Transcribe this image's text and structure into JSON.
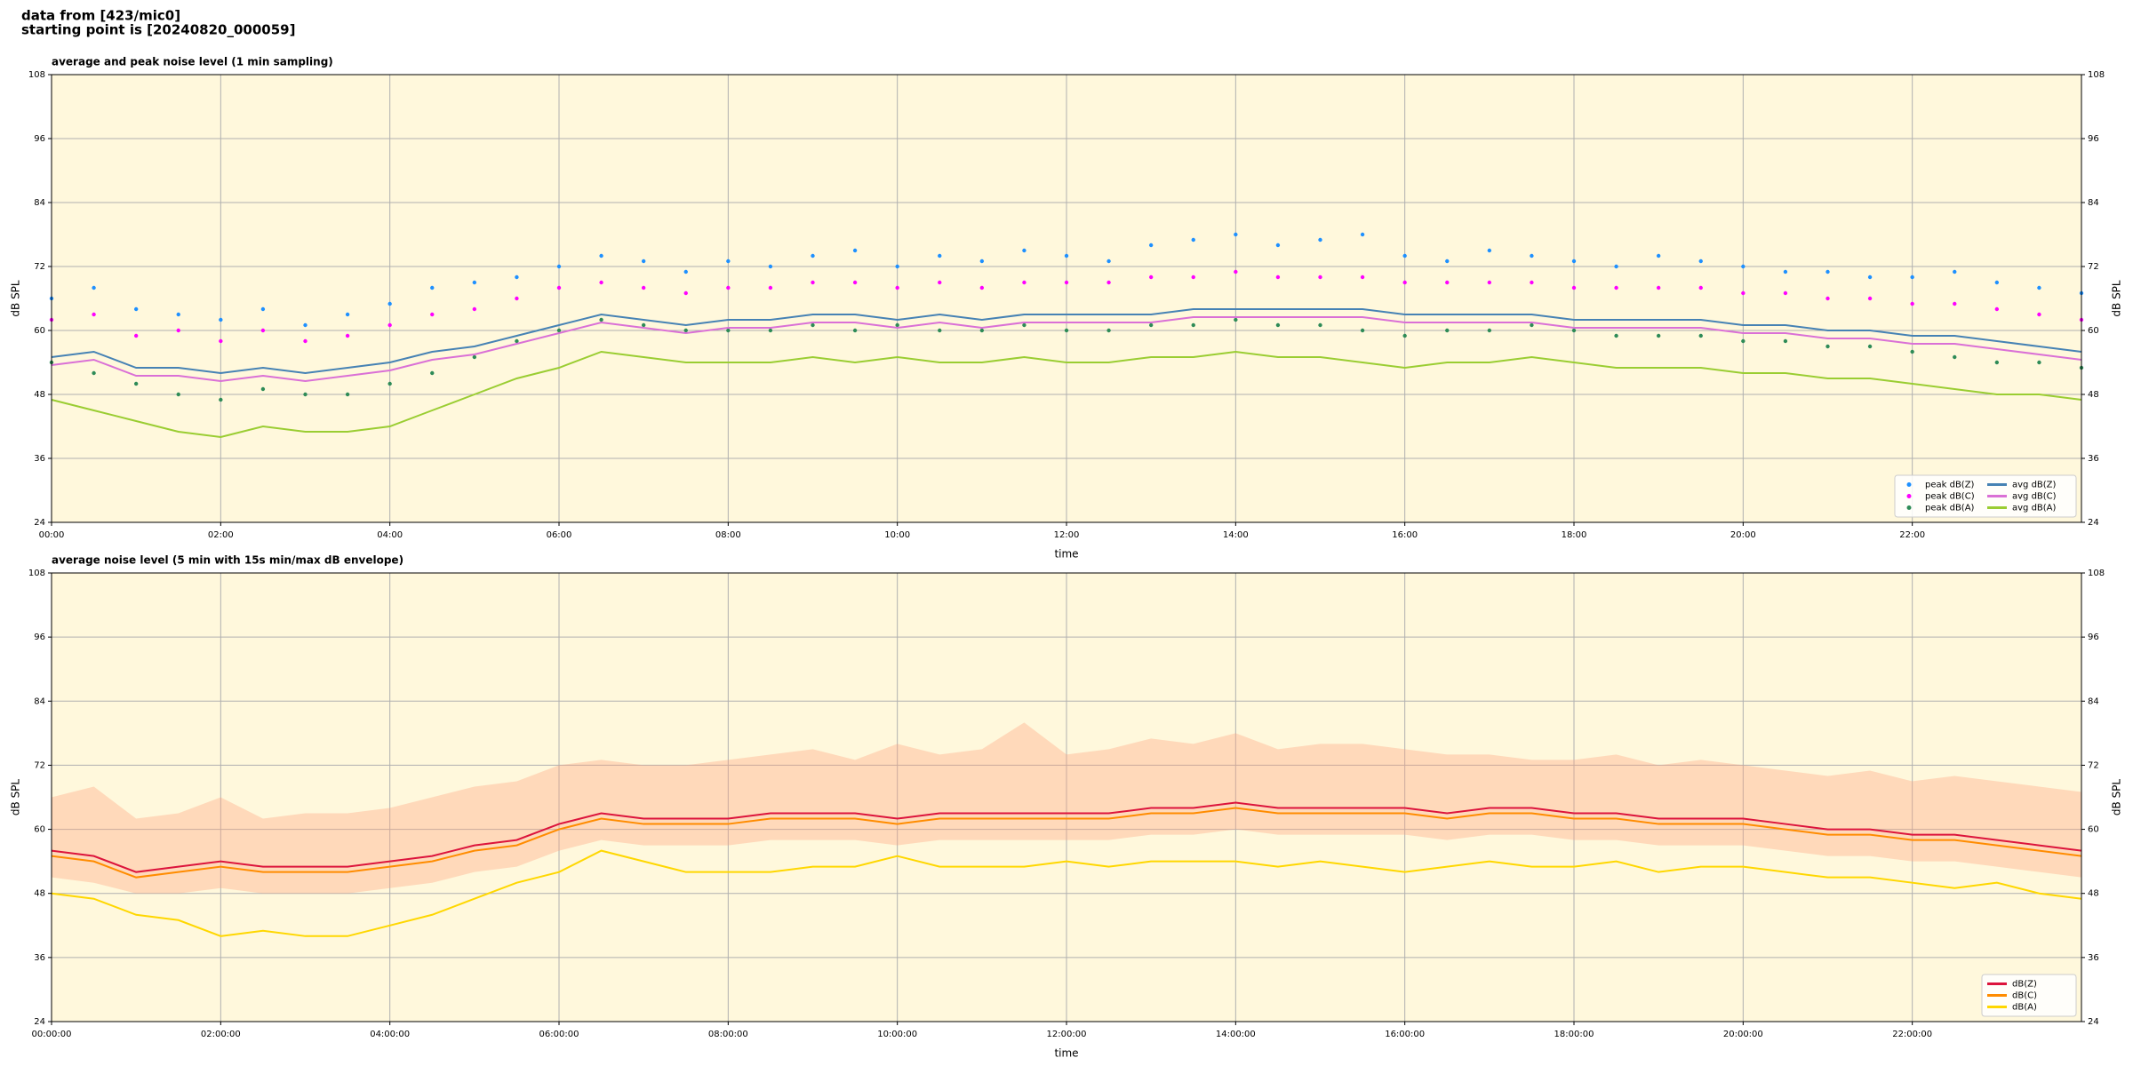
{
  "suptitle": [
    "data from [423/mic0]",
    "starting point is [20240820_000059]"
  ],
  "chart_data": [
    {
      "type": "line",
      "title": "average and peak noise level (1 min sampling)",
      "xlabel": "time",
      "ylabel": "dB SPL",
      "background": "#fff8dc",
      "grid": true,
      "legend": "lower right",
      "legend_columns": 2,
      "xlim": [
        0,
        24
      ],
      "ylim": [
        24,
        108
      ],
      "yticks": [
        24,
        36,
        48,
        60,
        72,
        84,
        96,
        108
      ],
      "xticks": [
        {
          "value": 0,
          "label": "00:00"
        },
        {
          "value": 2,
          "label": "02:00"
        },
        {
          "value": 4,
          "label": "04:00"
        },
        {
          "value": 6,
          "label": "06:00"
        },
        {
          "value": 8,
          "label": "08:00"
        },
        {
          "value": 10,
          "label": "10:00"
        },
        {
          "value": 12,
          "label": "12:00"
        },
        {
          "value": 14,
          "label": "14:00"
        },
        {
          "value": 16,
          "label": "16:00"
        },
        {
          "value": 18,
          "label": "18:00"
        },
        {
          "value": 20,
          "label": "20:00"
        },
        {
          "value": 22,
          "label": "22:00"
        }
      ],
      "x": [
        0,
        0.5,
        1,
        1.5,
        2,
        2.5,
        3,
        3.5,
        4,
        4.5,
        5,
        5.5,
        6,
        6.5,
        7,
        7.5,
        8,
        8.5,
        9,
        9.5,
        10,
        10.5,
        11,
        11.5,
        12,
        12.5,
        13,
        13.5,
        14,
        14.5,
        15,
        15.5,
        16,
        16.5,
        17,
        17.5,
        18,
        18.5,
        19,
        19.5,
        20,
        20.5,
        21,
        21.5,
        22,
        22.5,
        23,
        23.5,
        24
      ],
      "series": [
        {
          "name": "peak dB(Z)",
          "style": "dots",
          "color": "#1e90ff",
          "values": [
            66,
            68,
            64,
            63,
            62,
            64,
            61,
            63,
            65,
            68,
            69,
            70,
            72,
            74,
            73,
            71,
            73,
            72,
            74,
            75,
            72,
            74,
            73,
            75,
            74,
            73,
            76,
            77,
            78,
            76,
            77,
            78,
            74,
            73,
            75,
            74,
            73,
            72,
            74,
            73,
            72,
            71,
            71,
            70,
            70,
            71,
            69,
            68,
            67
          ]
        },
        {
          "name": "peak dB(C)",
          "style": "dots",
          "color": "#ff00ff",
          "values": [
            62,
            63,
            59,
            60,
            58,
            60,
            58,
            59,
            61,
            63,
            64,
            66,
            68,
            69,
            68,
            67,
            68,
            68,
            69,
            69,
            68,
            69,
            68,
            69,
            69,
            69,
            70,
            70,
            71,
            70,
            70,
            70,
            69,
            69,
            69,
            69,
            68,
            68,
            68,
            68,
            67,
            67,
            66,
            66,
            65,
            65,
            64,
            63,
            62
          ]
        },
        {
          "name": "peak dB(A)",
          "style": "dots",
          "color": "#2e8b57",
          "values": [
            54,
            52,
            50,
            48,
            47,
            49,
            48,
            48,
            50,
            52,
            55,
            58,
            60,
            62,
            61,
            60,
            60,
            60,
            61,
            60,
            61,
            60,
            60,
            61,
            60,
            60,
            61,
            61,
            62,
            61,
            61,
            60,
            59,
            60,
            60,
            61,
            60,
            59,
            59,
            59,
            58,
            58,
            57,
            57,
            56,
            55,
            54,
            54,
            53
          ]
        },
        {
          "name": "avg dB(Z)",
          "style": "line",
          "color": "#4682b4",
          "values": [
            55,
            56,
            53,
            53,
            52,
            53,
            52,
            53,
            54,
            56,
            57,
            59,
            61,
            63,
            62,
            61,
            62,
            62,
            63,
            63,
            62,
            63,
            62,
            63,
            63,
            63,
            63,
            64,
            64,
            64,
            64,
            64,
            63,
            63,
            63,
            63,
            62,
            62,
            62,
            62,
            61,
            61,
            60,
            60,
            59,
            59,
            58,
            57,
            56
          ]
        },
        {
          "name": "avg dB(C)",
          "style": "line",
          "color": "#da70d6",
          "values": [
            53.5,
            54.5,
            51.5,
            51.5,
            50.5,
            51.5,
            50.5,
            51.5,
            52.5,
            54.5,
            55.5,
            57.5,
            59.5,
            61.5,
            60.5,
            59.5,
            60.5,
            60.5,
            61.5,
            61.5,
            60.5,
            61.5,
            60.5,
            61.5,
            61.5,
            61.5,
            61.5,
            62.5,
            62.5,
            62.5,
            62.5,
            62.5,
            61.5,
            61.5,
            61.5,
            61.5,
            60.5,
            60.5,
            60.5,
            60.5,
            59.5,
            59.5,
            58.5,
            58.5,
            57.5,
            57.5,
            56.5,
            55.5,
            54.5
          ]
        },
        {
          "name": "avg dB(A)",
          "style": "line",
          "color": "#9acd32",
          "values": [
            47,
            45,
            43,
            41,
            40,
            42,
            41,
            41,
            42,
            45,
            48,
            51,
            53,
            56,
            55,
            54,
            54,
            54,
            55,
            54,
            55,
            54,
            54,
            55,
            54,
            54,
            55,
            55,
            56,
            55,
            55,
            54,
            53,
            54,
            54,
            55,
            54,
            53,
            53,
            53,
            52,
            52,
            51,
            51,
            50,
            49,
            48,
            48,
            47
          ]
        }
      ]
    },
    {
      "type": "line",
      "title": "average noise level (5 min with 15s min/max dB envelope)",
      "xlabel": "time",
      "ylabel": "dB SPL",
      "background": "#fff8dc",
      "grid": true,
      "legend": "lower right",
      "legend_columns": 1,
      "xlim": [
        0,
        24
      ],
      "ylim": [
        24,
        108
      ],
      "yticks": [
        24,
        36,
        48,
        60,
        72,
        84,
        96,
        108
      ],
      "xticks": [
        {
          "value": 0,
          "label": "00:00:00"
        },
        {
          "value": 2,
          "label": "02:00:00"
        },
        {
          "value": 4,
          "label": "04:00:00"
        },
        {
          "value": 6,
          "label": "06:00:00"
        },
        {
          "value": 8,
          "label": "08:00:00"
        },
        {
          "value": 10,
          "label": "10:00:00"
        },
        {
          "value": 12,
          "label": "12:00:00"
        },
        {
          "value": 14,
          "label": "14:00:00"
        },
        {
          "value": 16,
          "label": "16:00:00"
        },
        {
          "value": 18,
          "label": "18:00:00"
        },
        {
          "value": 20,
          "label": "20:00:00"
        },
        {
          "value": 22,
          "label": "22:00:00"
        }
      ],
      "x": [
        0,
        0.5,
        1,
        1.5,
        2,
        2.5,
        3,
        3.5,
        4,
        4.5,
        5,
        5.5,
        6,
        6.5,
        7,
        7.5,
        8,
        8.5,
        9,
        9.5,
        10,
        10.5,
        11,
        11.5,
        12,
        12.5,
        13,
        13.5,
        14,
        14.5,
        15,
        15.5,
        16,
        16.5,
        17,
        17.5,
        18,
        18.5,
        19,
        19.5,
        20,
        20.5,
        21,
        21.5,
        22,
        22.5,
        23,
        23.5,
        24
      ],
      "band": {
        "color": "#ffa07a",
        "low": [
          51,
          50,
          48,
          48,
          49,
          48,
          48,
          48,
          49,
          50,
          52,
          53,
          56,
          58,
          57,
          57,
          57,
          58,
          58,
          58,
          57,
          58,
          58,
          58,
          58,
          58,
          59,
          59,
          60,
          59,
          59,
          59,
          59,
          58,
          59,
          59,
          58,
          58,
          57,
          57,
          57,
          56,
          55,
          55,
          54,
          54,
          53,
          52,
          51
        ],
        "high": [
          66,
          68,
          62,
          63,
          66,
          62,
          63,
          63,
          64,
          66,
          68,
          69,
          72,
          73,
          72,
          72,
          73,
          74,
          75,
          73,
          76,
          74,
          75,
          80,
          74,
          75,
          77,
          76,
          78,
          75,
          76,
          76,
          75,
          74,
          74,
          73,
          73,
          74,
          72,
          73,
          72,
          71,
          70,
          71,
          69,
          70,
          69,
          68,
          67
        ]
      },
      "series": [
        {
          "name": "dB(Z)",
          "style": "line",
          "color": "#dc143c",
          "values": [
            56,
            55,
            52,
            53,
            54,
            53,
            53,
            53,
            54,
            55,
            57,
            58,
            61,
            63,
            62,
            62,
            62,
            63,
            63,
            63,
            62,
            63,
            63,
            63,
            63,
            63,
            64,
            64,
            65,
            64,
            64,
            64,
            64,
            63,
            64,
            64,
            63,
            63,
            62,
            62,
            62,
            61,
            60,
            60,
            59,
            59,
            58,
            57,
            56
          ]
        },
        {
          "name": "dB(C)",
          "style": "line",
          "color": "#ff8c00",
          "values": [
            55,
            54,
            51,
            52,
            53,
            52,
            52,
            52,
            53,
            54,
            56,
            57,
            60,
            62,
            61,
            61,
            61,
            62,
            62,
            62,
            61,
            62,
            62,
            62,
            62,
            62,
            63,
            63,
            64,
            63,
            63,
            63,
            63,
            62,
            63,
            63,
            62,
            62,
            61,
            61,
            61,
            60,
            59,
            59,
            58,
            58,
            57,
            56,
            55
          ]
        },
        {
          "name": "dB(A)",
          "style": "line",
          "color": "#ffd700",
          "values": [
            48,
            47,
            44,
            43,
            40,
            41,
            40,
            40,
            42,
            44,
            47,
            50,
            52,
            56,
            54,
            52,
            52,
            52,
            53,
            53,
            55,
            53,
            53,
            53,
            54,
            53,
            54,
            54,
            54,
            53,
            54,
            53,
            52,
            53,
            54,
            53,
            53,
            54,
            52,
            53,
            53,
            52,
            51,
            51,
            50,
            49,
            50,
            48,
            47
          ]
        }
      ]
    }
  ]
}
